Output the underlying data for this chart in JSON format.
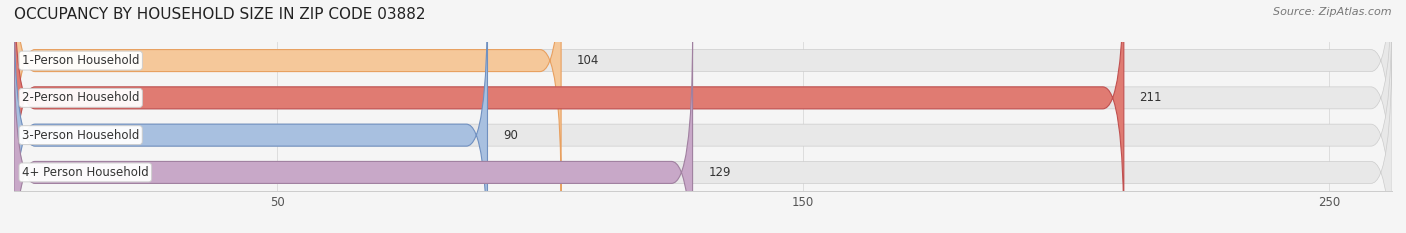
{
  "title": "OCCUPANCY BY HOUSEHOLD SIZE IN ZIP CODE 03882",
  "source": "Source: ZipAtlas.com",
  "categories": [
    "1-Person Household",
    "2-Person Household",
    "3-Person Household",
    "4+ Person Household"
  ],
  "values": [
    104,
    211,
    90,
    129
  ],
  "bar_colors": [
    "#f5c89a",
    "#e07b72",
    "#a8c0e0",
    "#c8a8c8"
  ],
  "bar_edge_colors": [
    "#e8a060",
    "#c05050",
    "#7090c0",
    "#a080a0"
  ],
  "xlim": [
    0,
    262
  ],
  "xticks": [
    50,
    150,
    250
  ],
  "background_color": "#f5f5f5",
  "bar_bg_color": "#e8e8e8",
  "title_fontsize": 11,
  "source_fontsize": 8,
  "label_fontsize": 8.5,
  "value_fontsize": 8.5,
  "tick_fontsize": 8.5
}
